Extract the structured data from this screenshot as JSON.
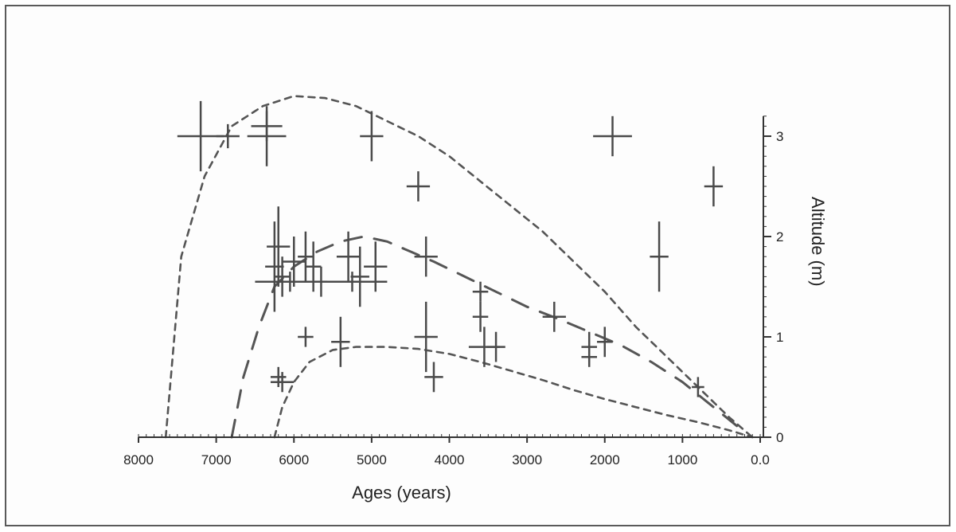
{
  "chart_data": {
    "type": "scatter",
    "xlabel": "Ages (years)",
    "ylabel": "Altitude (m)",
    "xlim": [
      8000,
      0
    ],
    "ylim": [
      0,
      3.2
    ],
    "x_reversed": true,
    "y_axis_side": "right",
    "grid": false,
    "legend": "none",
    "x_ticks": [
      {
        "value": 8000,
        "label": "8000"
      },
      {
        "value": 7000,
        "label": "7000"
      },
      {
        "value": 6000,
        "label": "6000"
      },
      {
        "value": 5000,
        "label": "5000"
      },
      {
        "value": 4000,
        "label": "4000"
      },
      {
        "value": 3000,
        "label": "3000"
      },
      {
        "value": 2000,
        "label": "2000"
      },
      {
        "value": 1000,
        "label": "1000"
      },
      {
        "value": 0,
        "label": "0.0"
      }
    ],
    "y_ticks": [
      {
        "value": 0,
        "label": "0"
      },
      {
        "value": 1,
        "label": "1"
      },
      {
        "value": 2,
        "label": "2"
      },
      {
        "value": 3,
        "label": "3"
      }
    ],
    "colors": {
      "marks": "#4a4a4a",
      "curves": "#555555",
      "axis": "#333333"
    },
    "points": [
      {
        "x": 7200,
        "y": 3.0,
        "xerr": 300,
        "yerr": 0.35
      },
      {
        "x": 6850,
        "y": 3.0,
        "xerr": 150,
        "yerr": 0.12
      },
      {
        "x": 6350,
        "y": 3.0,
        "xerr": 250,
        "yerr": 0.3
      },
      {
        "x": 6350,
        "y": 3.1,
        "xerr": 200,
        "yerr": 0.15
      },
      {
        "x": 5000,
        "y": 3.0,
        "xerr": 150,
        "yerr": 0.25
      },
      {
        "x": 4400,
        "y": 2.5,
        "xerr": 150,
        "yerr": 0.15
      },
      {
        "x": 1900,
        "y": 3.0,
        "xerr": 250,
        "yerr": 0.2
      },
      {
        "x": 600,
        "y": 2.5,
        "xerr": 120,
        "yerr": 0.2
      },
      {
        "x": 1300,
        "y": 1.8,
        "xerr": 120,
        "yerr": 0.35
      },
      {
        "x": 6200,
        "y": 1.9,
        "xerr": 150,
        "yerr": 0.4
      },
      {
        "x": 6250,
        "y": 1.7,
        "xerr": 120,
        "yerr": 0.45
      },
      {
        "x": 6150,
        "y": 1.6,
        "xerr": 100,
        "yerr": 0.2
      },
      {
        "x": 5850,
        "y": 1.8,
        "xerr": 100,
        "yerr": 0.25
      },
      {
        "x": 5750,
        "y": 1.7,
        "xerr": 100,
        "yerr": 0.25
      },
      {
        "x": 5650,
        "y": 1.55,
        "xerr": 80,
        "yerr": 0.15
      },
      {
        "x": 6000,
        "y": 1.75,
        "xerr": 150,
        "yerr": 0.25
      },
      {
        "x": 5300,
        "y": 1.8,
        "xerr": 150,
        "yerr": 0.25
      },
      {
        "x": 5150,
        "y": 1.6,
        "xerr": 120,
        "yerr": 0.3
      },
      {
        "x": 4950,
        "y": 1.7,
        "xerr": 150,
        "yerr": 0.25
      },
      {
        "x": 6050,
        "y": 1.55,
        "xerr": 450,
        "yerr": 0.1
      },
      {
        "x": 5250,
        "y": 1.55,
        "xerr": 450,
        "yerr": 0.1
      },
      {
        "x": 4300,
        "y": 1.8,
        "xerr": 150,
        "yerr": 0.2
      },
      {
        "x": 5850,
        "y": 1.0,
        "xerr": 100,
        "yerr": 0.1
      },
      {
        "x": 5400,
        "y": 0.95,
        "xerr": 120,
        "yerr": 0.25
      },
      {
        "x": 4300,
        "y": 1.0,
        "xerr": 150,
        "yerr": 0.35
      },
      {
        "x": 4200,
        "y": 0.6,
        "xerr": 120,
        "yerr": 0.15
      },
      {
        "x": 6200,
        "y": 0.6,
        "xerr": 100,
        "yerr": 0.1
      },
      {
        "x": 6150,
        "y": 0.55,
        "xerr": 150,
        "yerr": 0.1
      },
      {
        "x": 3600,
        "y": 1.45,
        "xerr": 100,
        "yerr": 0.1
      },
      {
        "x": 3600,
        "y": 1.2,
        "xerr": 100,
        "yerr": 0.15
      },
      {
        "x": 3550,
        "y": 0.9,
        "xerr": 200,
        "yerr": 0.2
      },
      {
        "x": 3400,
        "y": 0.9,
        "xerr": 120,
        "yerr": 0.15
      },
      {
        "x": 2650,
        "y": 1.2,
        "xerr": 150,
        "yerr": 0.15
      },
      {
        "x": 2200,
        "y": 0.9,
        "xerr": 100,
        "yerr": 0.15
      },
      {
        "x": 2200,
        "y": 0.8,
        "xerr": 100,
        "yerr": 0.1
      },
      {
        "x": 2000,
        "y": 0.95,
        "xerr": 100,
        "yerr": 0.15
      },
      {
        "x": 800,
        "y": 0.5,
        "xerr": 80,
        "yerr": 0.1
      }
    ],
    "curves": [
      {
        "style": "short-dash",
        "x": [
          7650,
          7450,
          7150,
          6800,
          6400,
          6000,
          5600,
          5200,
          4800,
          4400,
          4000,
          3600,
          3200,
          2800,
          2400,
          2000,
          1600,
          1200,
          800,
          400,
          100
        ],
        "y": [
          0.0,
          1.8,
          2.6,
          3.1,
          3.3,
          3.4,
          3.38,
          3.3,
          3.15,
          3.0,
          2.8,
          2.55,
          2.3,
          2.05,
          1.75,
          1.45,
          1.1,
          0.8,
          0.5,
          0.2,
          0.0
        ]
      },
      {
        "style": "short-dash",
        "x": [
          6250,
          6150,
          6000,
          5800,
          5500,
          5200,
          4800,
          4400,
          4000,
          3600,
          3200,
          2800,
          2400,
          2000,
          1600,
          1200,
          800,
          400,
          100
        ],
        "y": [
          0.0,
          0.3,
          0.55,
          0.75,
          0.87,
          0.9,
          0.9,
          0.88,
          0.83,
          0.75,
          0.66,
          0.57,
          0.47,
          0.38,
          0.3,
          0.22,
          0.15,
          0.07,
          0.0
        ]
      },
      {
        "style": "long-dash",
        "x": [
          6800,
          6650,
          6450,
          6250,
          6000,
          5700,
          5400,
          5100,
          4800,
          4500,
          4200,
          3800,
          3400,
          3000,
          2600,
          2200,
          1800,
          1400,
          1000,
          600,
          200
        ],
        "y": [
          0.0,
          0.6,
          1.1,
          1.5,
          1.7,
          1.85,
          1.95,
          2.0,
          1.95,
          1.85,
          1.75,
          1.6,
          1.45,
          1.3,
          1.18,
          1.05,
          0.92,
          0.75,
          0.55,
          0.3,
          0.05
        ]
      }
    ]
  }
}
